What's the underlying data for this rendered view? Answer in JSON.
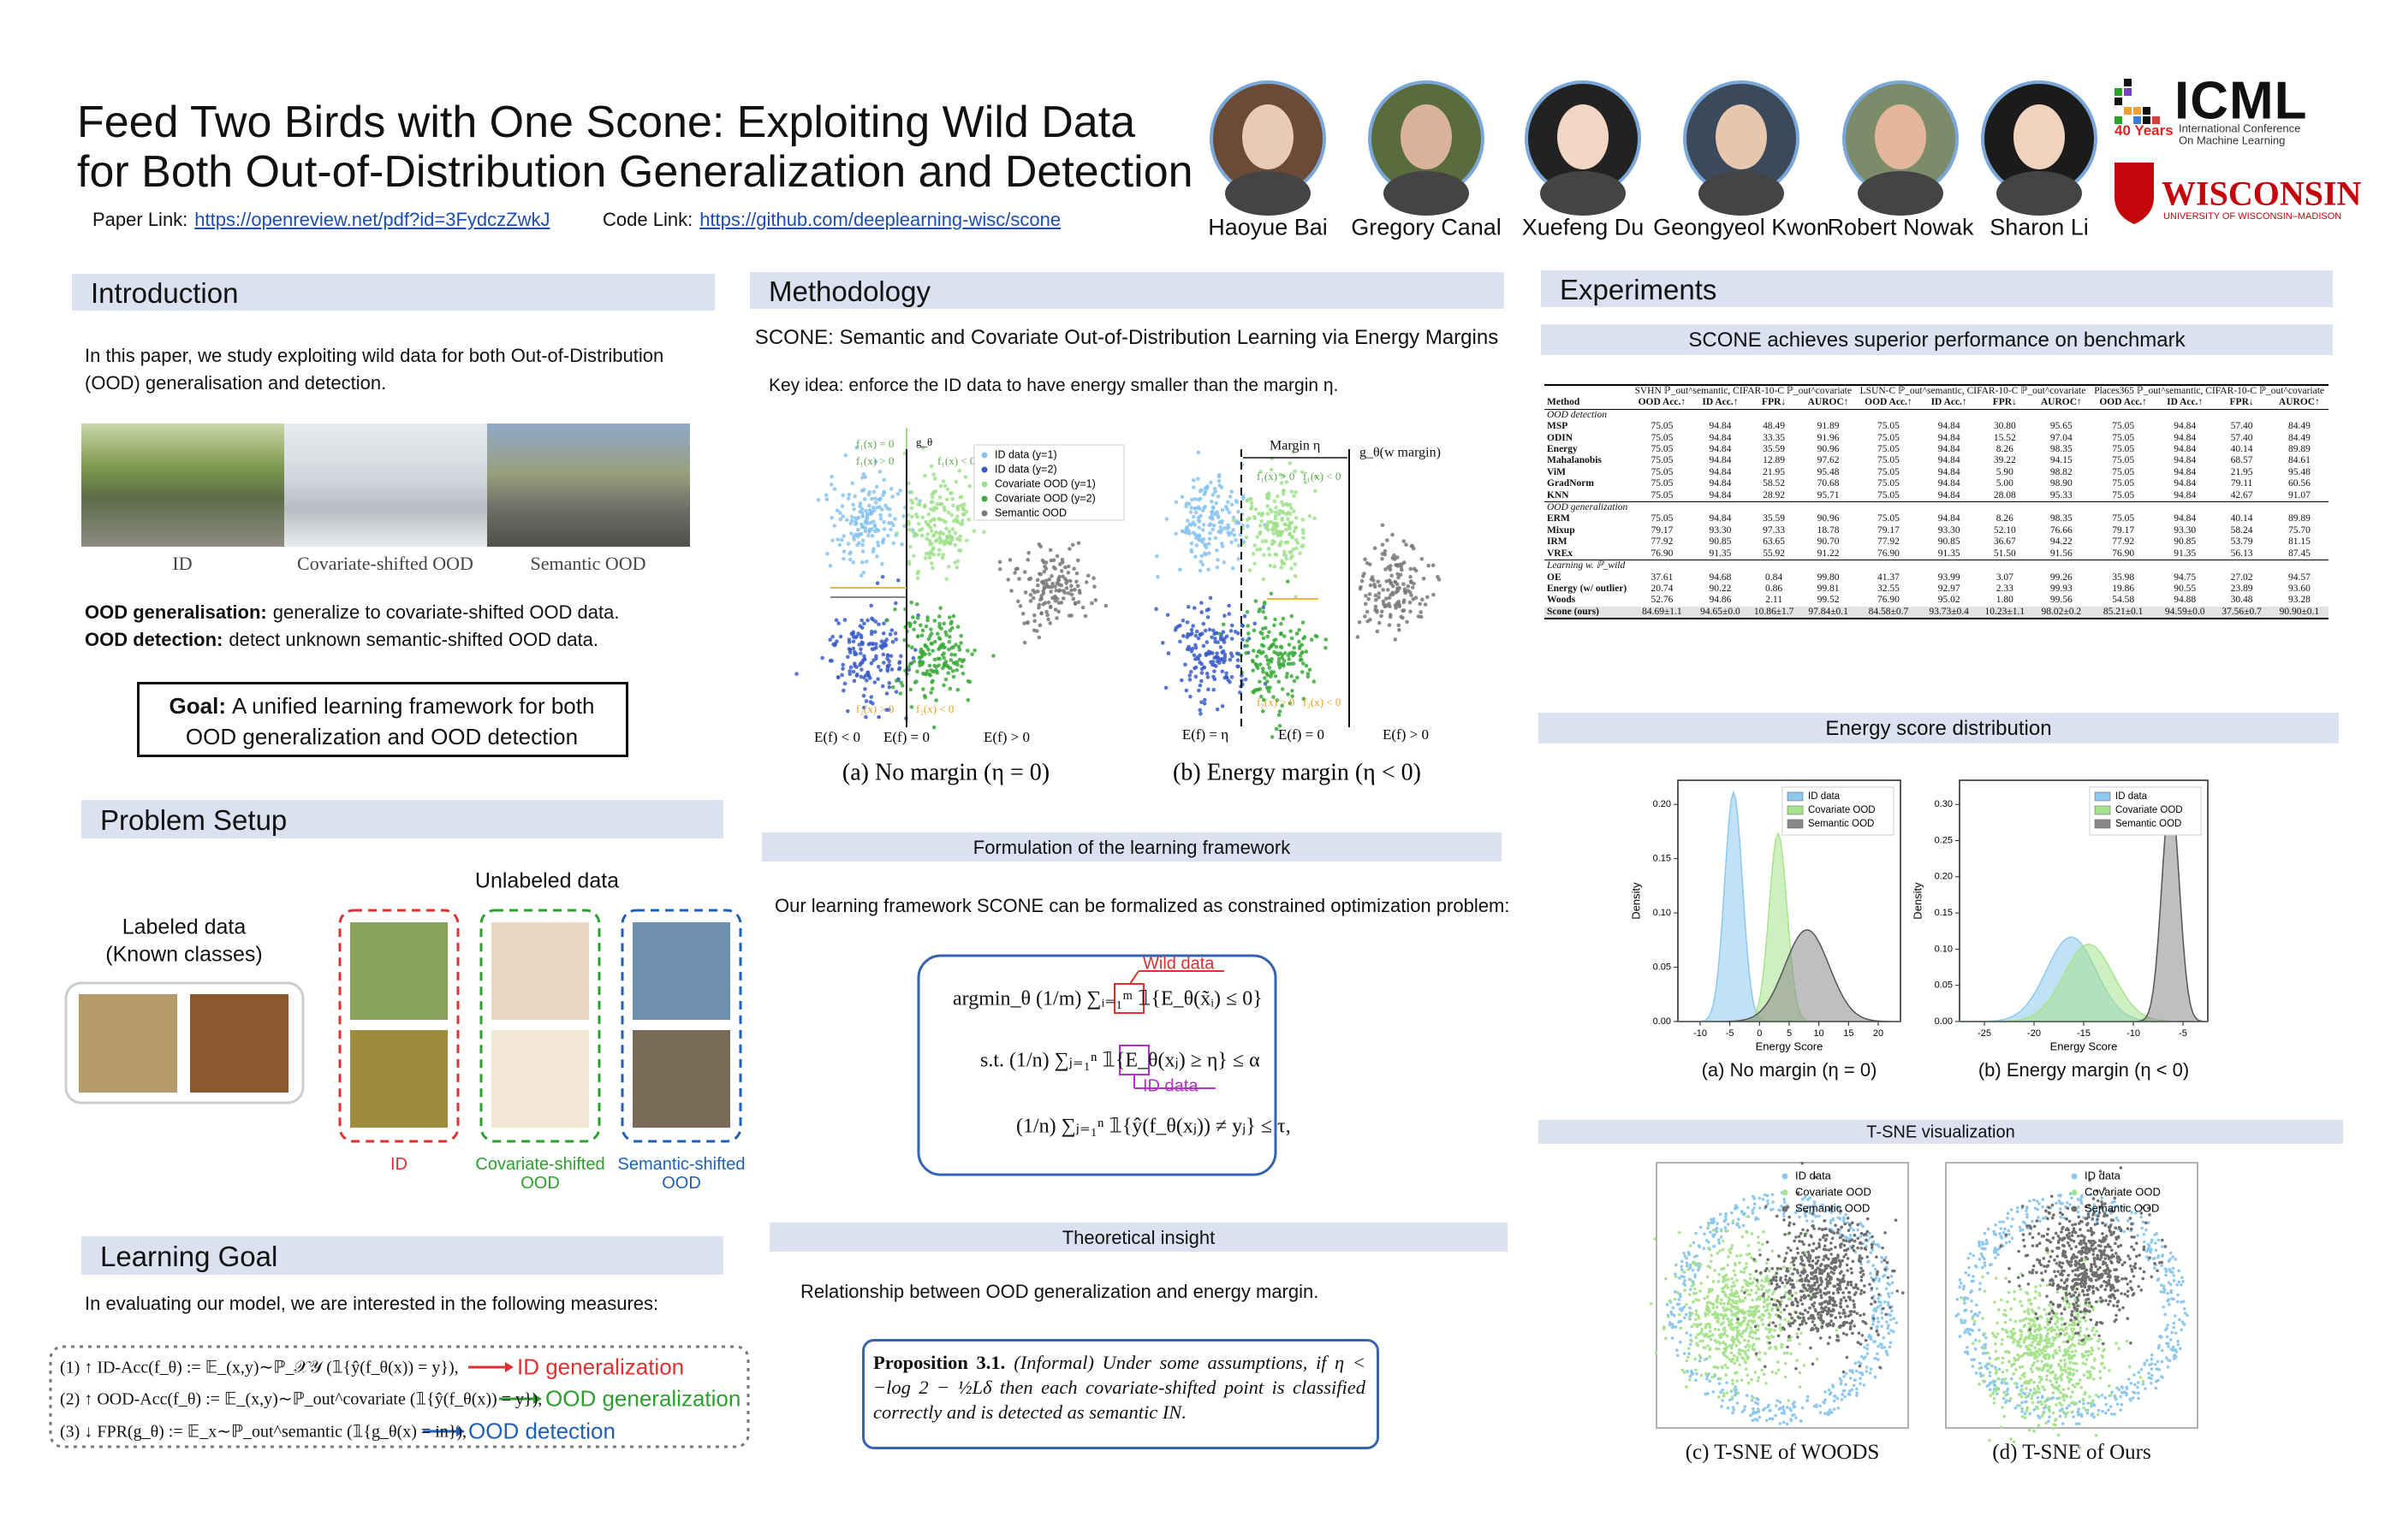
{
  "header": {
    "title_lines": [
      "Feed Two Birds with One Scone: Exploiting Wild Data",
      "for Both Out-of-Distribution Generalization and Detection"
    ],
    "paper_link": {
      "label": "Paper Link:",
      "url": "https://openreview.net/pdf?id=3FydczZwkJ"
    },
    "code_link": {
      "label": "Code Link:",
      "url": "https://github.com/deeplearning-wisc/scone"
    },
    "authors": [
      "Haoyue Bai",
      "Gregory Canal",
      "Xuefeng Du",
      "Geongyeol Kwon",
      "Robert Nowak",
      "Sharon Li"
    ],
    "icml": {
      "name": "ICML",
      "years": "40 Years",
      "subtitle_lines": [
        "International Conference",
        "On Machine Learning"
      ]
    },
    "wisconsin": {
      "name": "WISCONSIN",
      "subtitle": "UNIVERSITY OF WISCONSIN–MADISON"
    }
  },
  "introduction": {
    "heading": "Introduction",
    "text": "In this paper, we study exploiting wild data for both Out-of-Distribution (OOD) generalisation and detection.",
    "image_captions": [
      "ID",
      "Covariate-shifted OOD",
      "Semantic OOD"
    ],
    "definitions": [
      {
        "term": "OOD generalisation:",
        "text": "generalize to covariate-shifted OOD data."
      },
      {
        "term": "OOD detection:",
        "text": "detect unknown semantic-shifted OOD data."
      }
    ],
    "goal": {
      "term": "Goal:",
      "text": "A unified learning framework for both OOD generalization and OOD detection"
    }
  },
  "problem_setup": {
    "heading": "Problem Setup",
    "labeled_lines": [
      "Labeled data",
      "(Known classes)"
    ],
    "unlabeled": "Unlabeled data",
    "groups": [
      "ID",
      "Covariate-shifted OOD",
      "Semantic-shifted OOD"
    ]
  },
  "learning_goal": {
    "heading": "Learning Goal",
    "intro": "In evaluating our model, we are interested in the following measures:",
    "measures": [
      {
        "formula": "(1)  ↑ ID-Acc(f_θ) := 𝔼_(x,y)∼ℙ_𝒳𝒴 (𝟙{ŷ(f_θ(x)) = y}),",
        "label": "ID generalization"
      },
      {
        "formula": "(2)  ↑ OOD-Acc(f_θ) := 𝔼_(x,y)∼ℙ_out^covariate (𝟙{ŷ(f_θ(x)) = y}),",
        "label": "OOD generalization"
      },
      {
        "formula": "(3)  ↓ FPR(g_θ) := 𝔼_x∼ℙ_out^semantic (𝟙{g_θ(x) = in}),",
        "label": "OOD detection"
      }
    ]
  },
  "methodology": {
    "heading": "Methodology",
    "subheading": "SCONE: Semantic and Covariate Out-of-Distribution Learning via Energy Margins",
    "key_idea": "Key idea: enforce the ID data to have energy smaller than the margin η.",
    "figure": {
      "legend": [
        "ID data (y=1)",
        "ID data (y=2)",
        "Covariate OOD (y=1)",
        "Covariate OOD (y=2)",
        "Semantic OOD"
      ],
      "panel_a": {
        "annotations": [
          "f₁(x) = 0",
          "g_θ",
          "f₁(x) > 0",
          "f₁(x) < 0",
          "f₂(x) > 0",
          "f₂(x) < 0"
        ],
        "energy_labels": [
          "E(f) < 0",
          "E(f) = 0",
          "E(f) > 0"
        ],
        "caption": "(a)  No margin (η = 0)"
      },
      "panel_b": {
        "margin": "Margin η",
        "boundary": "g_θ(w margin)",
        "annotations": [
          "f₁(x) > 0",
          "f₁(x) < 0",
          "f₂(x) > 0",
          "f₂(x) < 0"
        ],
        "energy_labels": [
          "E(f) = η",
          "E(f) = 0",
          "E(f) > 0"
        ],
        "caption": "(b)  Energy margin (η < 0)"
      }
    },
    "formulation": {
      "heading": "Formulation of the learning framework",
      "text": "Our learning framework SCONE can be formalized as constrained optimization problem:",
      "lines": [
        "argmin_θ  (1/m) ∑ᵢ₌₁ᵐ 𝟙{E_θ(x̃ᵢ) ≤ 0}",
        "s.t.  (1/n) ∑ⱼ₌₁ⁿ 𝟙{E_θ(xⱼ) ≥ η} ≤ α",
        "(1/n) ∑ⱼ₌₁ⁿ 𝟙{ŷ(f_θ(xⱼ)) ≠ yⱼ} ≤ τ,"
      ],
      "wild_label": "Wild data",
      "id_label": "ID data"
    },
    "theory": {
      "heading": "Theoretical insight",
      "text": "Relationship between OOD generalization and energy margin.",
      "proposition": {
        "title": "Proposition 3.1.",
        "text": "(Informal) Under some assumptions, if η < −log 2 − ½Lδ then each covariate-shifted point is classified correctly and is detected as semantic IN."
      }
    }
  },
  "experiments": {
    "heading": "Experiments",
    "benchmark_heading": "SCONE achieves superior performance on benchmark",
    "table": {
      "group_headers": [
        "SVHN ℙ_out^semantic, CIFAR-10-C ℙ_out^covariate",
        "LSUN-C ℙ_out^semantic, CIFAR-10-C ℙ_out^covariate",
        "Places365 ℙ_out^semantic, CIFAR-10-C ℙ_out^covariate"
      ],
      "columns": [
        "Method",
        "OOD Acc.↑",
        "ID Acc.↑",
        "FPR↓",
        "AUROC↑",
        "OOD Acc.↑",
        "ID Acc.↑",
        "FPR↓",
        "AUROC↑",
        "OOD Acc.↑",
        "ID Acc.↑",
        "FPR↓",
        "AUROC↑"
      ],
      "sections": [
        {
          "title": "OOD detection",
          "rows": [
            [
              "MSP",
              "75.05",
              "94.84",
              "48.49",
              "91.89",
              "75.05",
              "94.84",
              "30.80",
              "95.65",
              "75.05",
              "94.84",
              "57.40",
              "84.49"
            ],
            [
              "ODIN",
              "75.05",
              "94.84",
              "33.35",
              "91.96",
              "75.05",
              "94.84",
              "15.52",
              "97.04",
              "75.05",
              "94.84",
              "57.40",
              "84.49"
            ],
            [
              "Energy",
              "75.05",
              "94.84",
              "35.59",
              "90.96",
              "75.05",
              "94.84",
              "8.26",
              "98.35",
              "75.05",
              "94.84",
              "40.14",
              "89.89"
            ],
            [
              "Mahalanobis",
              "75.05",
              "94.84",
              "12.89",
              "97.62",
              "75.05",
              "94.84",
              "39.22",
              "94.15",
              "75.05",
              "94.84",
              "68.57",
              "84.61"
            ],
            [
              "ViM",
              "75.05",
              "94.84",
              "21.95",
              "95.48",
              "75.05",
              "94.84",
              "5.90",
              "98.82",
              "75.05",
              "94.84",
              "21.95",
              "95.48"
            ],
            [
              "GradNorm",
              "75.05",
              "94.84",
              "58.52",
              "70.68",
              "75.05",
              "94.84",
              "5.00",
              "98.90",
              "75.05",
              "94.84",
              "79.11",
              "60.56"
            ],
            [
              "KNN",
              "75.05",
              "94.84",
              "28.92",
              "95.71",
              "75.05",
              "94.84",
              "28.08",
              "95.33",
              "75.05",
              "94.84",
              "42.67",
              "91.07"
            ]
          ]
        },
        {
          "title": "OOD generalization",
          "rows": [
            [
              "ERM",
              "75.05",
              "94.84",
              "35.59",
              "90.96",
              "75.05",
              "94.84",
              "8.26",
              "98.35",
              "75.05",
              "94.84",
              "40.14",
              "89.89"
            ],
            [
              "Mixup",
              "79.17",
              "93.30",
              "97.33",
              "18.78",
              "79.17",
              "93.30",
              "52.10",
              "76.66",
              "79.17",
              "93.30",
              "58.24",
              "75.70"
            ],
            [
              "IRM",
              "77.92",
              "90.85",
              "63.65",
              "90.70",
              "77.92",
              "90.85",
              "36.67",
              "94.22",
              "77.92",
              "90.85",
              "53.79",
              "81.15"
            ],
            [
              "VREx",
              "76.90",
              "91.35",
              "55.92",
              "91.22",
              "76.90",
              "91.35",
              "51.50",
              "91.56",
              "76.90",
              "91.35",
              "56.13",
              "87.45"
            ]
          ]
        },
        {
          "title": "Learning w. ℙ_wild",
          "rows": [
            [
              "OE",
              "37.61",
              "94.68",
              "0.84",
              "99.80",
              "41.37",
              "93.99",
              "3.07",
              "99.26",
              "35.98",
              "94.75",
              "27.02",
              "94.57"
            ],
            [
              "Energy (w/ outlier)",
              "20.74",
              "90.22",
              "0.86",
              "99.81",
              "32.55",
              "92.97",
              "2.33",
              "99.93",
              "19.86",
              "90.55",
              "23.89",
              "93.60"
            ],
            [
              "Woods",
              "52.76",
              "94.86",
              "2.11",
              "99.52",
              "76.90",
              "95.02",
              "1.80",
              "99.56",
              "54.58",
              "94.88",
              "30.48",
              "93.28"
            ],
            [
              "Scone (ours)",
              "84.69±1.1",
              "94.65±0.0",
              "10.86±1.7",
              "97.84±0.1",
              "84.58±0.7",
              "93.73±0.4",
              "10.23±1.1",
              "98.02±0.2",
              "85.21±0.1",
              "94.59±0.0",
              "37.56±0.7",
              "90.90±0.1"
            ]
          ]
        }
      ]
    },
    "energy": {
      "heading": "Energy score distribution",
      "legend": [
        "ID data",
        "Covariate OOD",
        "Semantic OOD"
      ],
      "y_label": "Density",
      "x_label": "Energy Score",
      "panels": [
        {
          "yticks": [
            "0.00",
            "0.05",
            "0.10",
            "0.15",
            "0.20"
          ],
          "xticks": [
            "-10",
            "-5",
            "0",
            "5",
            "10",
            "15",
            "20"
          ],
          "caption": "(a) No margin (η = 0)"
        },
        {
          "yticks": [
            "0.00",
            "0.05",
            "0.10",
            "0.15",
            "0.20",
            "0.25",
            "0.30"
          ],
          "xticks": [
            "-25",
            "-20",
            "-15",
            "-10",
            "-5"
          ],
          "caption": "(b) Energy margin (η < 0)"
        }
      ]
    },
    "tsne": {
      "heading": "T-SNE visualization",
      "legend": [
        "ID data",
        "Covariate OOD",
        "Semantic OOD"
      ],
      "captions": [
        "(c)  T-SNE of WOODS",
        "(d)  T-SNE of Ours"
      ]
    }
  }
}
